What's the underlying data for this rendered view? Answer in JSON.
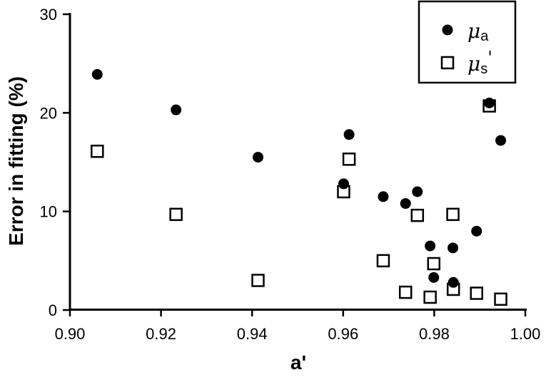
{
  "chart_data": {
    "type": "scatter",
    "title": "",
    "xlabel": "a'",
    "ylabel": "Error in fitting (%)",
    "xlim": [
      0.9,
      1.0
    ],
    "ylim": [
      0,
      30
    ],
    "xticks": [
      "0.90",
      "0.92",
      "0.94",
      "0.96",
      "0.98",
      "1.00"
    ],
    "yticks": [
      "0",
      "10",
      "20",
      "30"
    ],
    "grid": false,
    "legend_position": "top-right",
    "series": [
      {
        "name": "μa",
        "name_main": "μ",
        "name_sub": "a",
        "name_suffix": "",
        "marker": "filled-circle",
        "color": "#000000",
        "points": [
          [
            0.906,
            23.9
          ],
          [
            0.9233,
            20.3
          ],
          [
            0.9413,
            15.5
          ],
          [
            0.9601,
            12.8
          ],
          [
            0.9613,
            17.8
          ],
          [
            0.9688,
            11.5
          ],
          [
            0.9737,
            10.8
          ],
          [
            0.9763,
            12.0
          ],
          [
            0.9791,
            6.5
          ],
          [
            0.9799,
            3.3
          ],
          [
            0.9841,
            6.3
          ],
          [
            0.9842,
            2.8
          ],
          [
            0.9893,
            8.0
          ],
          [
            0.9921,
            21.0
          ],
          [
            0.9946,
            17.2
          ]
        ]
      },
      {
        "name": "μs'",
        "name_main": "μ",
        "name_sub": "s",
        "name_suffix": "'",
        "marker": "open-square",
        "color": "#000000",
        "points": [
          [
            0.906,
            16.1
          ],
          [
            0.9233,
            9.7
          ],
          [
            0.9413,
            3.0
          ],
          [
            0.9601,
            12.0
          ],
          [
            0.9613,
            15.3
          ],
          [
            0.9688,
            5.0
          ],
          [
            0.9737,
            1.8
          ],
          [
            0.9763,
            9.6
          ],
          [
            0.9791,
            1.3
          ],
          [
            0.9799,
            4.7
          ],
          [
            0.9841,
            9.7
          ],
          [
            0.9842,
            2.1
          ],
          [
            0.9893,
            1.7
          ],
          [
            0.9921,
            20.7
          ],
          [
            0.9946,
            1.1
          ]
        ]
      }
    ]
  }
}
